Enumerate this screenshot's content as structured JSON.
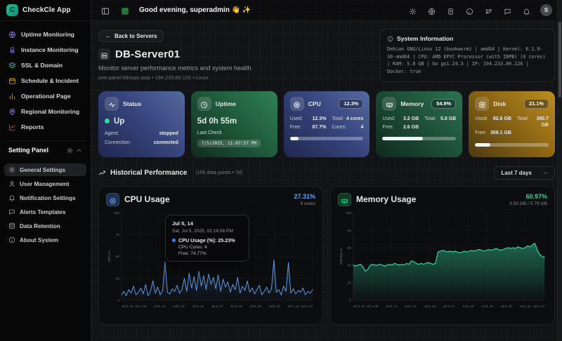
{
  "app": {
    "name": "CheckCle App",
    "logo_letter": "C",
    "accent": "#10b981"
  },
  "header": {
    "greeting": "Good evening, superadmin 👋 ✨",
    "avatar_initial": "S",
    "icon_names": [
      "sun",
      "globe",
      "doc",
      "github",
      "twitter",
      "chat",
      "bell"
    ]
  },
  "sidebar": {
    "items": [
      {
        "label": "Uptime Monitoring",
        "icon": "globe",
        "color": "#8b7cf6"
      },
      {
        "label": "Instance Monitoring",
        "icon": "boxes",
        "color": "#7c6cf0"
      },
      {
        "label": "SSL & Domain",
        "icon": "layers",
        "color": "#2dd4bf"
      },
      {
        "label": "Schedule & Incident",
        "icon": "calendar",
        "color": "#f59e0b"
      },
      {
        "label": "Operational Page",
        "icon": "bar-chart",
        "color": "#eab308"
      },
      {
        "label": "Regional Monitoring",
        "icon": "map-pin",
        "color": "#a78bfa"
      },
      {
        "label": "Reports",
        "icon": "line-chart",
        "color": "#ef4444"
      }
    ],
    "settings_header": "Setting Panel",
    "settings_items": [
      {
        "label": "General Settings",
        "icon": "gear",
        "active": true
      },
      {
        "label": "User Management",
        "icon": "user",
        "active": false
      },
      {
        "label": "Notification Settings",
        "icon": "bell",
        "active": false
      },
      {
        "label": "Alerts Templates",
        "icon": "chat",
        "active": false
      },
      {
        "label": "Data Retention",
        "icon": "database",
        "active": false
      },
      {
        "label": "About System",
        "icon": "info",
        "active": false
      }
    ]
  },
  "server": {
    "back_label": "Back to Servers",
    "name": "DB-Server01",
    "subtitle": "Monitor server performance metrics and system health",
    "meta": "one-panel.k8sops.asia • 194.233.80.126 • Linux",
    "system_info": {
      "title": "System Information",
      "text": "Debian GNU/Linux 12 (bookworm) | amd64 | Kernel: 6.1.0-30-amd64 | CPU: AMD EPYC Processor (with IBPB) (4 cores) | RAM: 5.8 GB | Go go1.24.3 | IP: 194.233.80.126 | Docker: true"
    }
  },
  "cards": {
    "status": {
      "title": "Status",
      "state": "Up",
      "agent_label": "Agent:",
      "agent": "stopped",
      "connection_label": "Connection:",
      "connection": "connected"
    },
    "uptime": {
      "title": "Uptime",
      "value": "5d 0h 55m",
      "last_check_label": "Last Check",
      "last_check": "7/5/2025, 11:07:57 PM"
    },
    "cpu": {
      "title": "CPU",
      "badge": "12.3%",
      "used_label": "Used:",
      "used": "12.3%",
      "total_label": "Total:",
      "total": "4 cores",
      "free_label": "Free:",
      "free": "87.7%",
      "cores_label": "Cores:",
      "cores": "4",
      "progress": 12.3
    },
    "memory": {
      "title": "Memory",
      "badge": "54.9%",
      "used_label": "Used:",
      "used": "3.2 GB",
      "total_label": "Total:",
      "total": "5.8 GB",
      "free_label": "Free:",
      "free": "2.6 GB",
      "progress": 54.9
    },
    "disk": {
      "title": "Disk",
      "badge": "21.1%",
      "used_label": "Used:",
      "used": "82.6 GB",
      "total_label": "Total:",
      "total": "390.7 GB",
      "free_label": "Free:",
      "free": "308.1 GB",
      "progress": 21.1
    }
  },
  "historical": {
    "title": "Historical Performance",
    "meta": "(155 data points • 7d)",
    "range_label": "Last 7 days"
  },
  "chart_data": [
    {
      "type": "line",
      "title": "CPU Usage",
      "icon": "cpu",
      "color": "#60a5fa",
      "current_value": "27.31%",
      "current_sub": "4 cores",
      "xlabel": "",
      "ylabel": "CPU %",
      "ylim": [
        0,
        100
      ],
      "yticks": [
        0,
        25,
        50,
        75,
        100
      ],
      "grid": true,
      "x_labels": [
        "Jul 3, 23",
        "Jul 4, 09",
        "Jul 5, 14",
        "Jul 5, 15",
        "Jul 5, 16",
        "Jul 5, 17",
        "Jul 5, 18",
        "Jul 5, 19",
        "Jul 5, 20",
        "Jul 5, 21",
        "Jul 5, 23"
      ],
      "series": [
        {
          "name": "CPU Usage (%)",
          "values": [
            6,
            10,
            5,
            12,
            8,
            16,
            6,
            9,
            14,
            7,
            18,
            5,
            10,
            22,
            8,
            15,
            6,
            11,
            44,
            9,
            7,
            13,
            10,
            17,
            8,
            12,
            25,
            10,
            31,
            14,
            27,
            11,
            33,
            16,
            28,
            12,
            30,
            18,
            26,
            13,
            29,
            10,
            24,
            15,
            21,
            9,
            18,
            12,
            26,
            8,
            16,
            11,
            22,
            9,
            14,
            7,
            12,
            17,
            6,
            10,
            15,
            8,
            13,
            46,
            9,
            12,
            6,
            16,
            10,
            43,
            8,
            13,
            7,
            11,
            9,
            14,
            6,
            10,
            8,
            12
          ]
        }
      ],
      "tooltip": {
        "title": "Jul 5, 14",
        "time": "Sat, Jul 5, 2025, 02:19:58 PM",
        "main": "CPU Usage (%): 25.23%",
        "sub1": "CPU Cores: 4",
        "sub2": "Free: 74.77%"
      }
    },
    {
      "type": "area",
      "title": "Memory Usage",
      "icon": "memory",
      "color": "#34d399",
      "current_value": "60.97%",
      "current_sub": "3.53 GB / 5.79 GB",
      "xlabel": "",
      "ylabel": "Memory %",
      "ylim": [
        0,
        100
      ],
      "yticks": [
        0,
        20,
        40,
        60,
        80,
        100
      ],
      "grid": true,
      "x_labels": [
        "Jul 3, 23",
        "Jul 4, 09",
        "Jul 5, 14",
        "Jul 5, 15",
        "Jul 5, 16",
        "Jul 5, 17",
        "Jul 5, 18",
        "Jul 5, 19",
        "Jul 5, 20",
        "Jul 5, 21",
        "Jul 5, 23"
      ],
      "series": [
        {
          "name": "Memory Usage (%)",
          "values": [
            40,
            39,
            40,
            41,
            38,
            33,
            35,
            40,
            41,
            40,
            40,
            41,
            40,
            39,
            40,
            41,
            40,
            42,
            41,
            40,
            41,
            40,
            42,
            41,
            45,
            44,
            42,
            41,
            42,
            41,
            42,
            43,
            42,
            41,
            42,
            55,
            56,
            57,
            56,
            55,
            56,
            55,
            56,
            55,
            54,
            55,
            56,
            55,
            56,
            57,
            56,
            57,
            58,
            57,
            56,
            57,
            58,
            57,
            58,
            59,
            58,
            57,
            58,
            59,
            60,
            59,
            60,
            59,
            61,
            60,
            59,
            60,
            62,
            61,
            63,
            65,
            58,
            52,
            50,
            49
          ]
        }
      ]
    }
  ]
}
